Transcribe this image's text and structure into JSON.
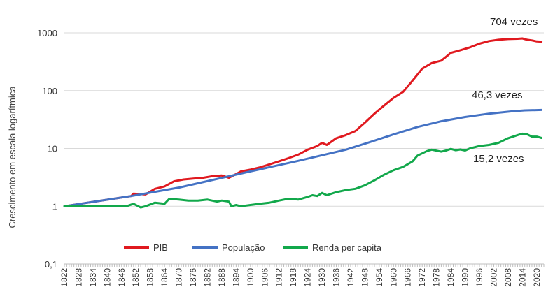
{
  "chart_data": {
    "type": "line",
    "ylabel": "Crescimento em escala logarítmica",
    "yscale": "log",
    "ylim": [
      0.1,
      1000
    ],
    "yticks": [
      "0,1",
      "1",
      "10",
      "100",
      "1000"
    ],
    "xlim": [
      1822,
      2023
    ],
    "xticks": [
      "1822",
      "1828",
      "1834",
      "1840",
      "1846",
      "1852",
      "1858",
      "1864",
      "1870",
      "1876",
      "1882",
      "1888",
      "1894",
      "1900",
      "1906",
      "1912",
      "1918",
      "1924",
      "1930",
      "1936",
      "1942",
      "1948",
      "1954",
      "1960",
      "1966",
      "1972",
      "1978",
      "1984",
      "1990",
      "1996",
      "2002",
      "2008",
      "2014",
      "2020"
    ],
    "grid": true,
    "legend_position": "bottom",
    "series": [
      {
        "name": "PIB",
        "color": "#e0191f",
        "x": [
          1822,
          1850,
          1851,
          1856,
          1860,
          1864,
          1868,
          1872,
          1876,
          1880,
          1884,
          1888,
          1891,
          1894,
          1896,
          1900,
          1904,
          1908,
          1912,
          1916,
          1920,
          1924,
          1928,
          1930,
          1932,
          1936,
          1940,
          1944,
          1948,
          1952,
          1956,
          1960,
          1964,
          1968,
          1972,
          1976,
          1980,
          1984,
          1988,
          1992,
          1996,
          2000,
          2004,
          2008,
          2012,
          2014,
          2016,
          2018,
          2020,
          2022
        ],
        "values": [
          1,
          1.5,
          1.65,
          1.6,
          2.0,
          2.2,
          2.7,
          2.9,
          3.0,
          3.1,
          3.3,
          3.4,
          3.1,
          3.6,
          4.0,
          4.3,
          4.7,
          5.3,
          6.0,
          6.8,
          7.8,
          9.5,
          11.0,
          12.5,
          11.5,
          15,
          17,
          20,
          28,
          40,
          55,
          75,
          95,
          150,
          240,
          300,
          330,
          450,
          500,
          560,
          650,
          720,
          760,
          780,
          790,
          800,
          760,
          740,
          710,
          704
        ]
      },
      {
        "name": "População",
        "color": "#4472c4",
        "x": [
          1822,
          1850,
          1870,
          1880,
          1900,
          1920,
          1940,
          1950,
          1960,
          1970,
          1980,
          1990,
          2000,
          2010,
          2015,
          2022
        ],
        "values": [
          1,
          1.5,
          2.1,
          2.6,
          4.0,
          6.1,
          9.5,
          12.8,
          17.5,
          23.5,
          29.5,
          35,
          40,
          44,
          45.5,
          46.3
        ]
      },
      {
        "name": "Renda per capita",
        "color": "#12a84b",
        "x": [
          1822,
          1848,
          1851,
          1854,
          1856,
          1860,
          1864,
          1866,
          1870,
          1874,
          1878,
          1882,
          1886,
          1888,
          1891,
          1892,
          1894,
          1896,
          1900,
          1904,
          1908,
          1912,
          1916,
          1920,
          1924,
          1926,
          1928,
          1930,
          1932,
          1936,
          1940,
          1944,
          1948,
          1952,
          1956,
          1960,
          1964,
          1968,
          1970,
          1974,
          1976,
          1980,
          1982,
          1984,
          1986,
          1988,
          1990,
          1992,
          1996,
          2000,
          2004,
          2008,
          2012,
          2014,
          2016,
          2018,
          2020,
          2022
        ],
        "values": [
          1,
          1,
          1.1,
          0.95,
          1.0,
          1.15,
          1.1,
          1.35,
          1.3,
          1.25,
          1.25,
          1.3,
          1.2,
          1.25,
          1.2,
          1.0,
          1.05,
          1.0,
          1.05,
          1.1,
          1.15,
          1.25,
          1.35,
          1.3,
          1.45,
          1.55,
          1.5,
          1.7,
          1.55,
          1.75,
          1.9,
          2.0,
          2.3,
          2.8,
          3.5,
          4.2,
          4.8,
          6.0,
          7.5,
          9.0,
          9.5,
          8.8,
          9.2,
          9.8,
          9.3,
          9.6,
          9.2,
          10.0,
          11.0,
          11.5,
          12.5,
          15,
          17,
          18,
          17.5,
          16,
          16,
          15.2
        ]
      }
    ],
    "annotations": [
      {
        "id": "pib",
        "text": "704 vezes"
      },
      {
        "id": "pop",
        "text": "46,3 vezes"
      },
      {
        "id": "renda",
        "text": "15,2 vezes"
      }
    ]
  }
}
